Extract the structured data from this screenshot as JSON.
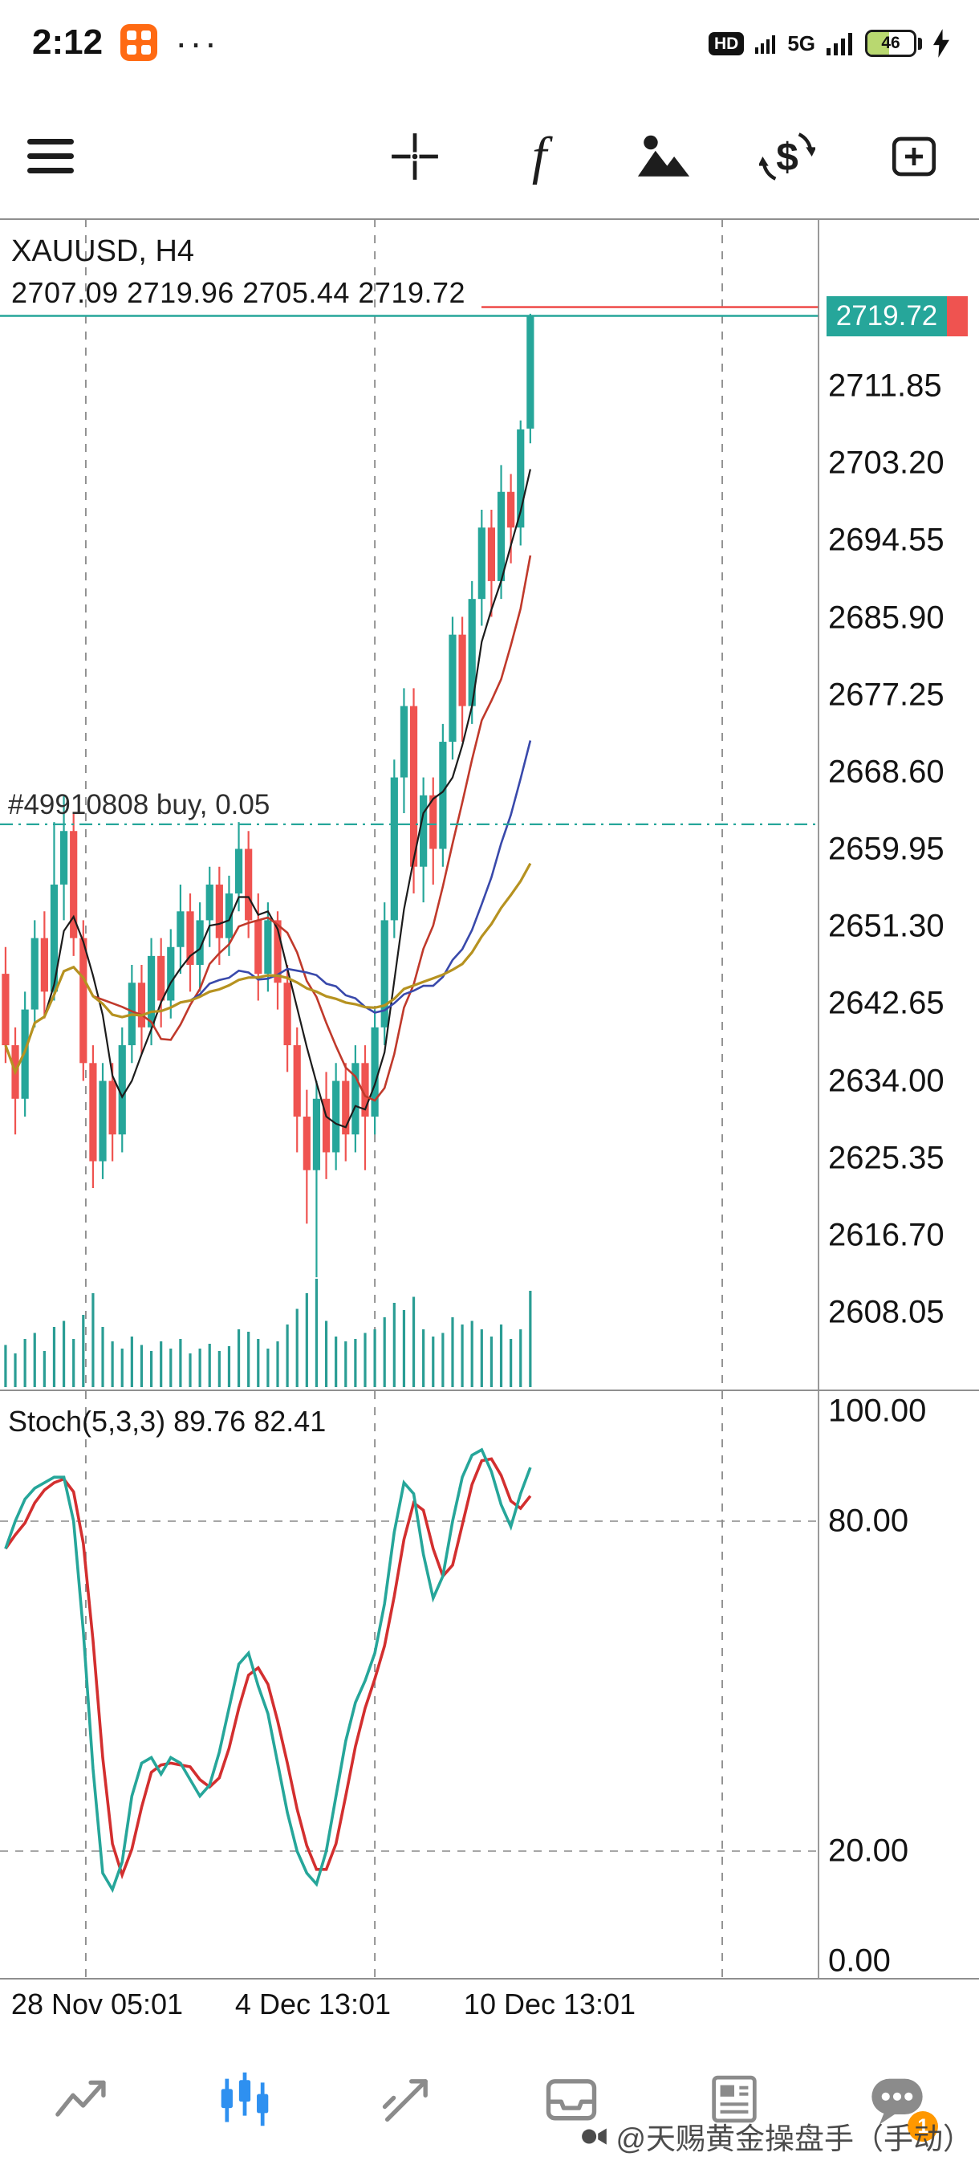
{
  "status_bar": {
    "time": "2:12",
    "more": "···",
    "hd": "HD",
    "network": "5G",
    "battery": "46"
  },
  "toolbar": {
    "function_glyph": "f",
    "currency_glyph": "$"
  },
  "main_chart": {
    "symbol": "XAUUSD, H4",
    "ohlc": "2707.09 2719.96 2705.44 2719.72",
    "position_label": "#49910808 buy, 0.05",
    "price_badge": "2719.72",
    "axis_labels": [
      "2711.85",
      "2703.20",
      "2694.55",
      "2685.90",
      "2677.25",
      "2668.60",
      "2659.95",
      "2651.30",
      "2642.65",
      "2634.00",
      "2625.35",
      "2616.70",
      "2608.05"
    ]
  },
  "stoch_panel": {
    "label": "Stoch(5,3,3) 89.76 82.41",
    "axis_labels": [
      "100.00",
      "80.00",
      "20.00",
      "0.00"
    ]
  },
  "time_axis": {
    "labels": [
      "28 Nov 05:01",
      "4 Dec 13:01",
      "10 Dec 13:01"
    ]
  },
  "nav": {
    "unread_badge": "1"
  },
  "watermark": {
    "text": "@天赐黄金操盘手（手动）"
  },
  "chart_data": {
    "type": "candlestick",
    "symbol": "XAUUSD",
    "timeframe": "H4",
    "last_ohlc": {
      "open": 2707.09,
      "high": 2719.96,
      "low": 2705.44,
      "close": 2719.72
    },
    "bid": 2719.72,
    "ask": 2720.7,
    "position": {
      "id": "#49910808",
      "side": "buy",
      "volume": 0.05,
      "open_price": 2662.75
    },
    "y_axis": {
      "tick_min": 2608.05,
      "tick_max": 2711.85,
      "tick_step": 8.65,
      "view_min": 2599.2,
      "view_max": 2730.6
    },
    "x_axis_labels": [
      "28 Nov 05:01",
      "4 Dec 13:01",
      "10 Dec 13:01"
    ],
    "stochastic": {
      "params": "5,3,3",
      "main_last": 89.76,
      "signal_last": 82.41,
      "levels": [
        80,
        20
      ],
      "range": [
        0,
        100
      ]
    },
    "time_grid_cols": [
      8.26,
      38,
      73.75
    ],
    "candles": [
      [
        2646,
        2649,
        2636,
        2638
      ],
      [
        2638,
        2640,
        2628,
        2632
      ],
      [
        2632,
        2644,
        2630,
        2642
      ],
      [
        2642,
        2652,
        2640,
        2650
      ],
      [
        2650,
        2653,
        2641,
        2644
      ],
      [
        2644,
        2663,
        2643,
        2656
      ],
      [
        2656,
        2666,
        2652,
        2662
      ],
      [
        2662,
        2664,
        2648,
        2650
      ],
      [
        2650,
        2652,
        2634,
        2636
      ],
      [
        2636,
        2638,
        2622,
        2625
      ],
      [
        2625,
        2636,
        2623,
        2634
      ],
      [
        2634,
        2636,
        2625,
        2628
      ],
      [
        2628,
        2640,
        2626,
        2638
      ],
      [
        2638,
        2647,
        2636,
        2645
      ],
      [
        2645,
        2647,
        2637,
        2640
      ],
      [
        2640,
        2650,
        2638,
        2648
      ],
      [
        2648,
        2650,
        2640,
        2643
      ],
      [
        2643,
        2651,
        2641,
        2649
      ],
      [
        2649,
        2656,
        2646,
        2653
      ],
      [
        2653,
        2655,
        2644,
        2647
      ],
      [
        2647,
        2654,
        2644,
        2652
      ],
      [
        2652,
        2658,
        2649,
        2656
      ],
      [
        2656,
        2658,
        2647,
        2650
      ],
      [
        2650,
        2657,
        2648,
        2655
      ],
      [
        2655,
        2663,
        2653,
        2660
      ],
      [
        2660,
        2662,
        2650,
        2652
      ],
      [
        2652,
        2655,
        2643,
        2646
      ],
      [
        2646,
        2654,
        2644,
        2652
      ],
      [
        2652,
        2653,
        2642,
        2645
      ],
      [
        2645,
        2647,
        2635,
        2638
      ],
      [
        2638,
        2640,
        2626,
        2630
      ],
      [
        2630,
        2633,
        2618,
        2624
      ],
      [
        2624,
        2634,
        2612,
        2632
      ],
      [
        2632,
        2635,
        2623,
        2626
      ],
      [
        2626,
        2636,
        2624,
        2634
      ],
      [
        2634,
        2636,
        2625,
        2628
      ],
      [
        2628,
        2638,
        2626,
        2636
      ],
      [
        2636,
        2638,
        2624,
        2630
      ],
      [
        2630,
        2642,
        2628,
        2640
      ],
      [
        2640,
        2654,
        2638,
        2652
      ],
      [
        2652,
        2670,
        2650,
        2668
      ],
      [
        2668,
        2678,
        2664,
        2676
      ],
      [
        2676,
        2678,
        2655,
        2658
      ],
      [
        2658,
        2668,
        2654,
        2666
      ],
      [
        2666,
        2668,
        2656,
        2660
      ],
      [
        2660,
        2674,
        2658,
        2672
      ],
      [
        2672,
        2686,
        2670,
        2684
      ],
      [
        2684,
        2686,
        2672,
        2676
      ],
      [
        2676,
        2690,
        2674,
        2688
      ],
      [
        2688,
        2698,
        2685,
        2696
      ],
      [
        2696,
        2698,
        2686,
        2690
      ],
      [
        2690,
        2703,
        2688,
        2700
      ],
      [
        2700,
        2702,
        2692,
        2696
      ],
      [
        2696,
        2708,
        2694,
        2707
      ],
      [
        2707.09,
        2719.96,
        2705.44,
        2719.72
      ]
    ],
    "volumes": [
      35,
      28,
      40,
      45,
      30,
      50,
      55,
      40,
      60,
      78,
      50,
      38,
      32,
      42,
      35,
      30,
      38,
      32,
      40,
      28,
      32,
      36,
      30,
      34,
      48,
      46,
      40,
      32,
      38,
      52,
      65,
      78,
      90,
      55,
      42,
      38,
      40,
      45,
      48,
      58,
      70,
      64,
      75,
      48,
      42,
      45,
      58,
      52,
      55,
      48,
      42,
      52,
      40,
      48,
      80
    ],
    "stoch_main": [
      75,
      80,
      84,
      86,
      87,
      88,
      88,
      80,
      60,
      35,
      16,
      13,
      18,
      30,
      36,
      37,
      34,
      37,
      36,
      33,
      30,
      32,
      38,
      46,
      54,
      56,
      50,
      45,
      36,
      27,
      20,
      16,
      14,
      20,
      30,
      40,
      47,
      51,
      56,
      65,
      78,
      87,
      85,
      74,
      66,
      70,
      80,
      88,
      92,
      93,
      89,
      83,
      79,
      85,
      89.76
    ],
    "mas": [
      {
        "name": "ma-fast",
        "period": 5,
        "color": "#1c1c1c",
        "width": 2.2
      },
      {
        "name": "ma-medium",
        "period": 10,
        "color": "#c0392b",
        "width": 2.6
      },
      {
        "name": "ma-slow",
        "period": 20,
        "color": "#3949ab",
        "width": 2.6
      },
      {
        "name": "ma-long",
        "period": 40,
        "color": "#b69220",
        "width": 3.2
      }
    ],
    "colors": {
      "bull": "#26a69a",
      "bear": "#ef5350",
      "volume": "#2a9d94",
      "stoch_main": "#26a69a",
      "stoch_signal": "#d32f2f",
      "grid": "#8a8a8a",
      "bid_line": "#26a69a",
      "ask_line": "#ef5350",
      "position_line": "#26a69a"
    }
  }
}
